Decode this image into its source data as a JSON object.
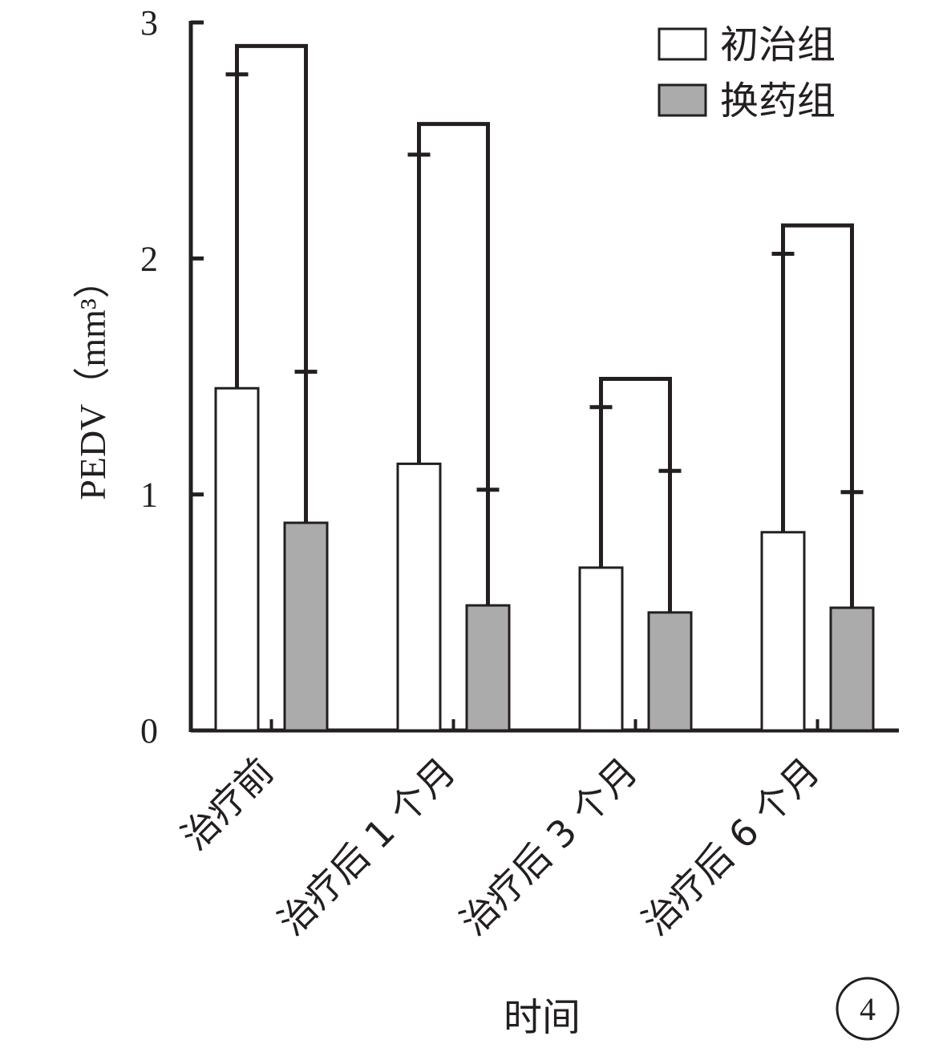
{
  "chart_data": {
    "type": "bar",
    "categories": [
      "治疗前",
      "治疗后 1 个月",
      "治疗后 3 个月",
      "治疗后 6 个月"
    ],
    "series": [
      {
        "name": "初治组",
        "values": [
          1.45,
          1.13,
          0.69,
          0.84
        ],
        "upper": [
          2.78,
          2.44,
          1.37,
          2.02
        ],
        "fill": "#ffffff"
      },
      {
        "name": "换药组",
        "values": [
          0.88,
          0.53,
          0.5,
          0.52
        ],
        "upper": [
          1.52,
          1.02,
          1.1,
          1.01
        ],
        "fill": "#acabac"
      }
    ],
    "brackets": [
      2.9,
      2.57,
      1.49,
      2.14
    ],
    "ylabel": "PEDV（mm³）",
    "xlabel": "时间",
    "ylim": [
      0,
      3
    ],
    "yticks": [
      "0",
      "1",
      "2",
      "3"
    ],
    "legend": "top-right",
    "grid": false
  },
  "panel_label": "4",
  "colors": {
    "ink": "#231f20",
    "bar_a": "#ffffff",
    "bar_b": "#acabac"
  }
}
